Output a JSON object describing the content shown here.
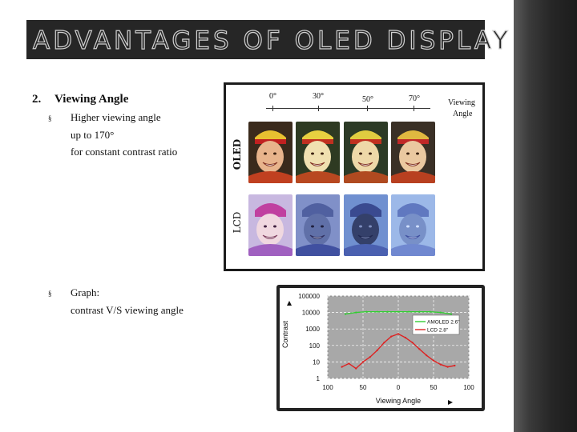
{
  "slide": {
    "title": "ADVANTAGES OF OLED DISPLAY",
    "section_number": "2.",
    "section_title": "Viewing Angle",
    "bullet1": {
      "marker": "§",
      "line1": "Higher viewing angle",
      "line2": "up to 170°",
      "line3": "for constant contrast ratio"
    },
    "bullet2": {
      "marker": "§",
      "line1": "Graph:",
      "line2": "contrast V/S viewing angle"
    }
  },
  "photo_comparison": {
    "angles": [
      "0°",
      "30°",
      "50°",
      "70°"
    ],
    "axis_label_line1": "Viewing",
    "axis_label_line2": "Angle",
    "row_oled": "OLED",
    "row_lcd": "LCD"
  },
  "chart_data": {
    "type": "line",
    "title": "",
    "xlabel": "Viewing Angle",
    "ylabel": "Contrast",
    "x_tick_labels": [
      "100",
      "50",
      "0",
      "50",
      "100"
    ],
    "y_scale": "log",
    "y_tick_labels": [
      "100000",
      "10000",
      "1000",
      "100",
      "10",
      "1"
    ],
    "xlim": [
      -100,
      100
    ],
    "ylim": [
      1,
      100000
    ],
    "grid": true,
    "legend_position": "right",
    "series": [
      {
        "name": "AMOLED 2.6\"",
        "color": "#33cc33",
        "x": [
          -75,
          -60,
          -45,
          -30,
          -15,
          0,
          15,
          30,
          45,
          60,
          75
        ],
        "y": [
          8000,
          10000,
          11000,
          11000,
          11000,
          11000,
          11000,
          11000,
          11000,
          10000,
          8000
        ]
      },
      {
        "name": "LCD 2.8\"",
        "color": "#dd2222",
        "x": [
          -80,
          -70,
          -60,
          -50,
          -40,
          -30,
          -20,
          -10,
          0,
          10,
          20,
          30,
          40,
          50,
          60,
          70,
          80
        ],
        "y": [
          5,
          8,
          4,
          10,
          20,
          50,
          150,
          350,
          500,
          300,
          150,
          60,
          25,
          12,
          7,
          5,
          6
        ]
      }
    ]
  }
}
